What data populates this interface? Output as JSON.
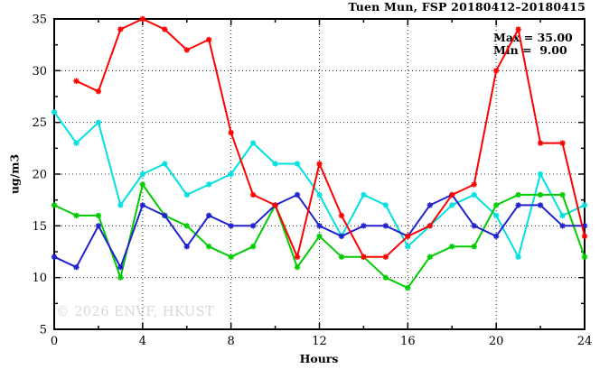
{
  "chart": {
    "title": "Tuen Mun, FSP 20180412–20180415",
    "annotation": {
      "max": "Max = 35.00",
      "min": "Min =  9.00"
    },
    "ylabel": "ug/m3",
    "xlabel": "Hours",
    "watermark": "© 2026 ENVF, HKUST"
  },
  "chart_data": {
    "type": "line",
    "title": "Tuen Mun, FSP 20180412–20180415",
    "xlabel": "Hours",
    "ylabel": "ug/m3",
    "xlim": [
      0,
      24
    ],
    "ylim": [
      5,
      35
    ],
    "x_major_ticks": [
      0,
      4,
      8,
      12,
      16,
      20,
      24
    ],
    "y_major_ticks": [
      5,
      10,
      15,
      20,
      25,
      30,
      35
    ],
    "x_minor_step": 2,
    "y_minor_step": 2.5,
    "grid": true,
    "legend_position": "none",
    "max_value": 35.0,
    "min_value": 9.0,
    "x": [
      0,
      1,
      2,
      3,
      4,
      5,
      6,
      7,
      8,
      9,
      10,
      11,
      12,
      13,
      14,
      15,
      16,
      17,
      18,
      19,
      20,
      21,
      22,
      23,
      24
    ],
    "series": [
      {
        "name": "series-cyan",
        "color": "#00e0e0",
        "values": [
          26,
          23,
          25,
          17,
          20,
          21,
          18,
          19,
          20,
          23,
          21,
          21,
          18,
          14,
          18,
          17,
          13,
          15,
          17,
          18,
          16,
          12,
          20,
          16,
          17
        ]
      },
      {
        "name": "series-green",
        "color": "#00cc00",
        "values": [
          17,
          16,
          16,
          10,
          19,
          16,
          15,
          13,
          12,
          13,
          17,
          11,
          14,
          12,
          12,
          10,
          9,
          12,
          13,
          13,
          17,
          18,
          18,
          18,
          12
        ]
      },
      {
        "name": "series-blue",
        "color": "#2222cc",
        "values": [
          12,
          11,
          15,
          11,
          17,
          16,
          13,
          16,
          15,
          15,
          17,
          18,
          15,
          14,
          15,
          15,
          14,
          17,
          18,
          15,
          14,
          17,
          17,
          15,
          15
        ]
      },
      {
        "name": "series-red",
        "color": "#ff0000",
        "values": [
          null,
          29,
          28,
          34,
          35,
          34,
          32,
          33,
          24,
          18,
          17,
          12,
          21,
          16,
          12,
          12,
          14,
          15,
          18,
          19,
          30,
          34,
          23,
          23,
          14
        ]
      }
    ]
  }
}
